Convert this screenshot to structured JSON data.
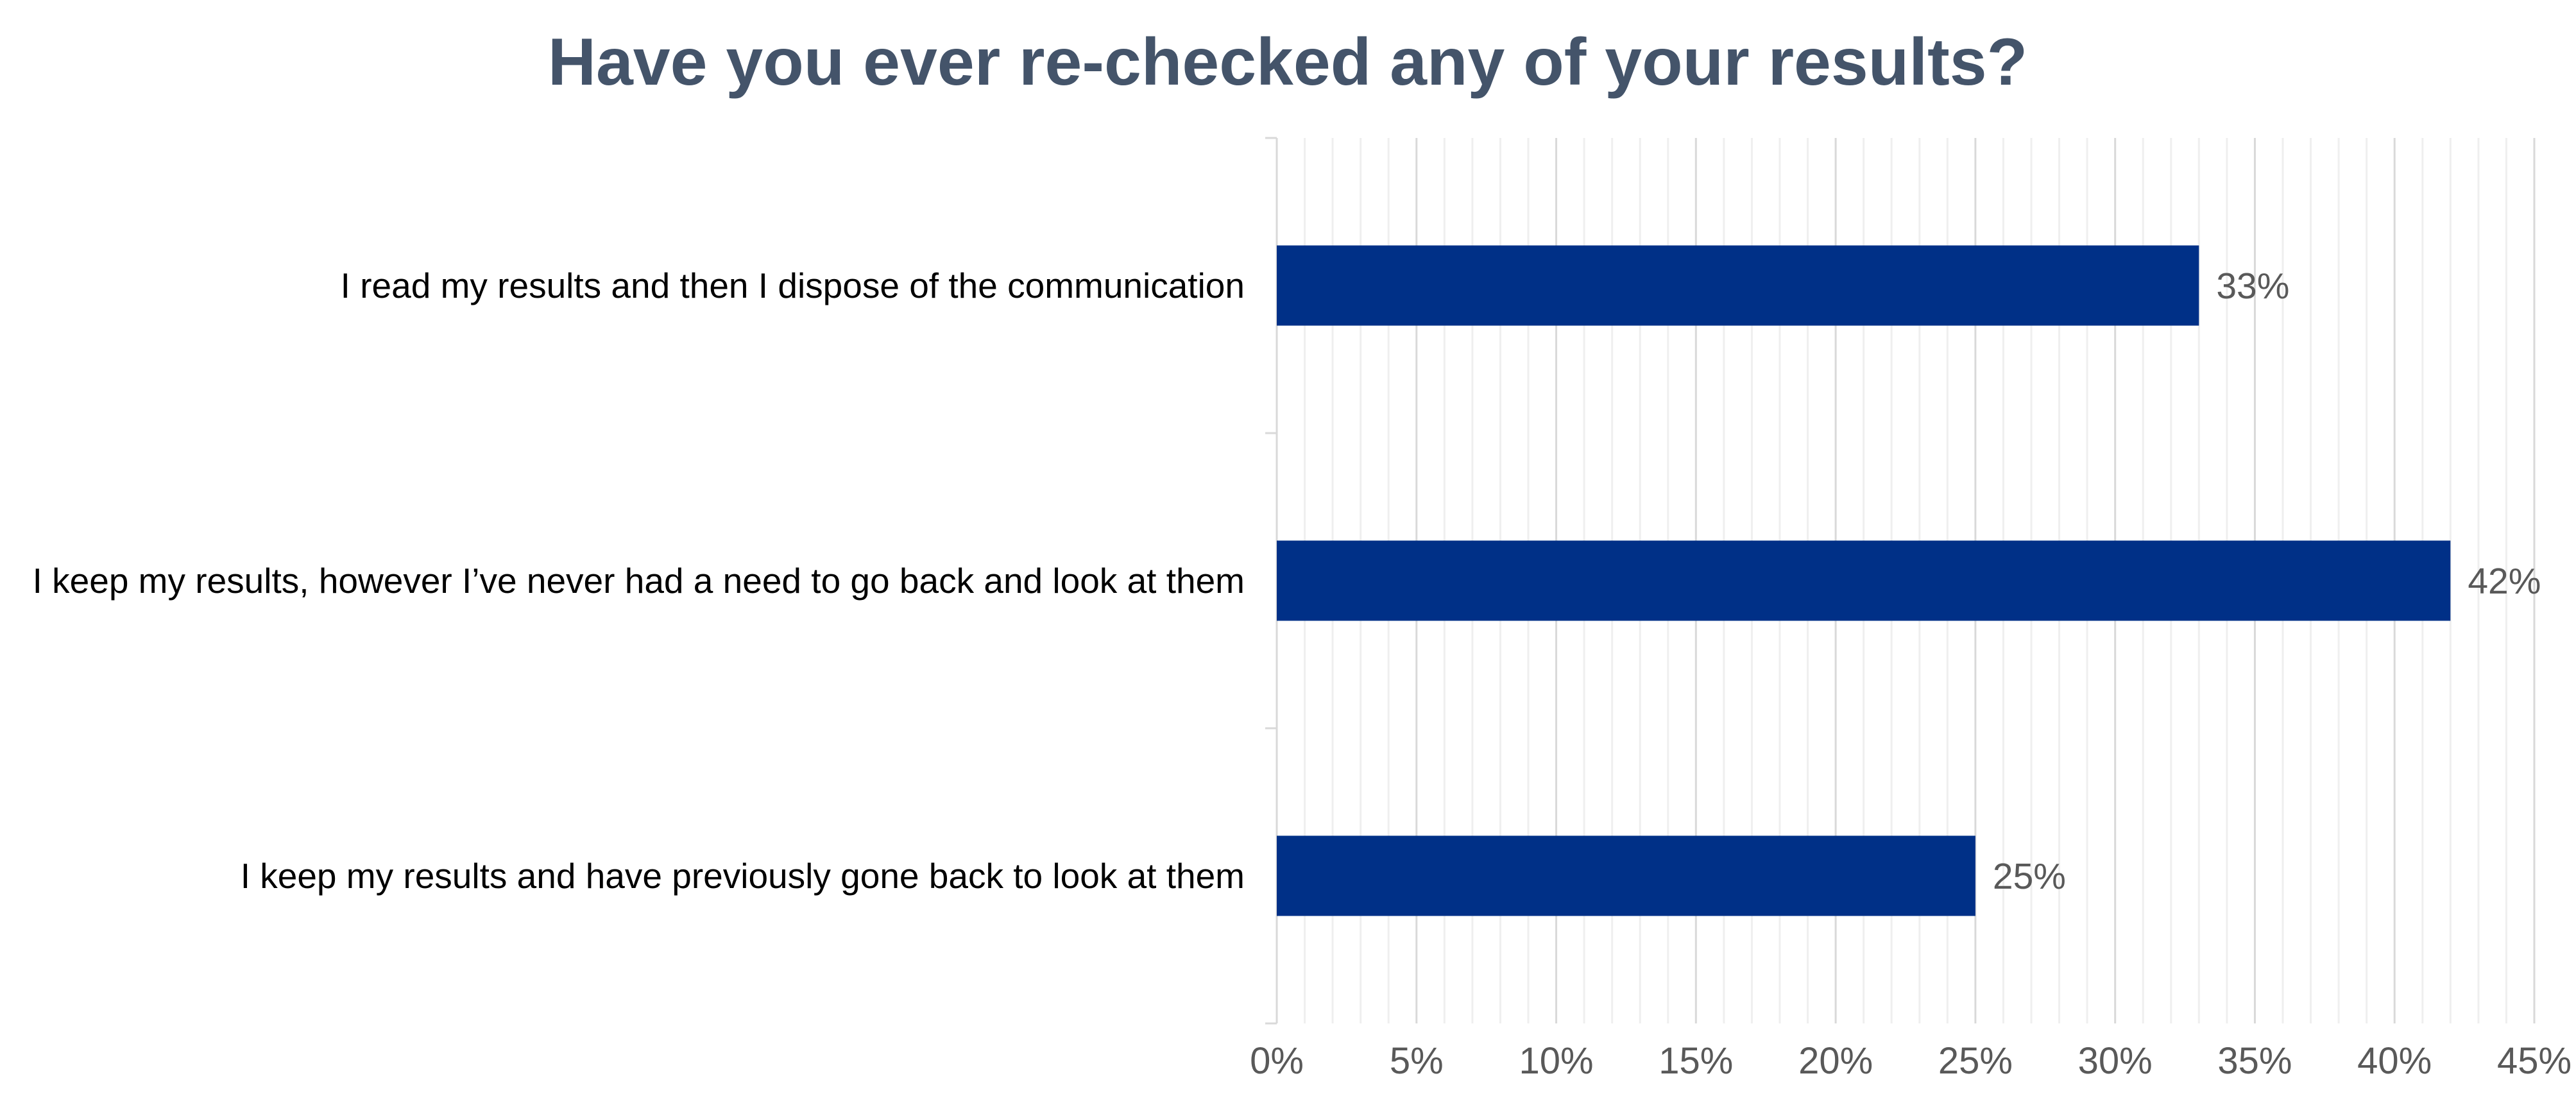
{
  "chart_data": {
    "type": "bar",
    "orientation": "horizontal",
    "title": "Have you ever re-checked any of your results?",
    "categories": [
      "I read my results and then I dispose of the communication",
      "I keep my results, however I’ve never had a need to go back and look at them",
      "I keep my results and have previously gone back to look at them"
    ],
    "values": [
      33,
      42,
      25
    ],
    "data_labels": [
      "33%",
      "42%",
      "25%"
    ],
    "xlim": [
      0,
      45
    ],
    "x_ticks": [
      0,
      5,
      10,
      15,
      20,
      25,
      30,
      35,
      40,
      45
    ],
    "x_tick_labels": [
      "0%",
      "5%",
      "10%",
      "15%",
      "20%",
      "25%",
      "30%",
      "35%",
      "40%",
      "45%"
    ],
    "x_minor_step": 1,
    "grid": true,
    "legend": "none",
    "colors": {
      "bar": "#003087",
      "title": "#44546a",
      "tick_text": "#595959",
      "grid_major": "#d9d9d9",
      "grid_minor": "#efefef"
    }
  }
}
